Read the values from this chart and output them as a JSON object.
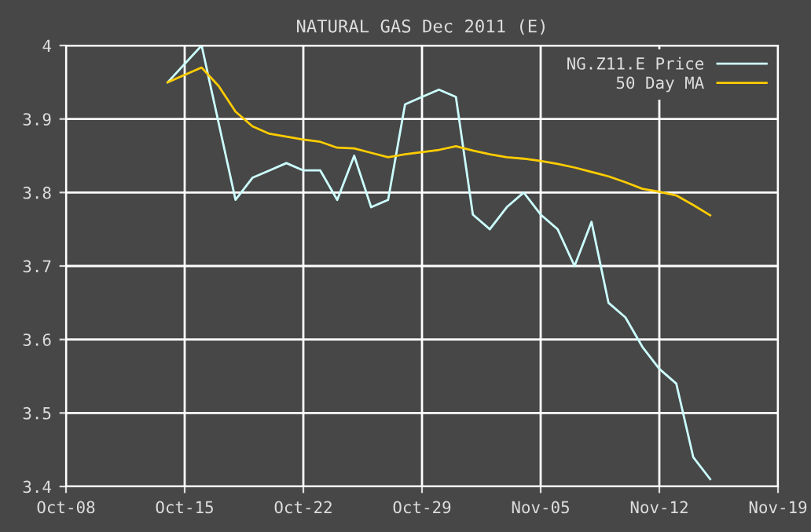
{
  "chart_data": {
    "type": "line",
    "title": "NATURAL GAS Dec 2011 (E)",
    "series": [
      {
        "name": "NG.Z11.E Price",
        "color": "#ccffff",
        "x": [
          "2011-10-14",
          "2011-10-16",
          "2011-10-18",
          "2011-10-19",
          "2011-10-20",
          "2011-10-21",
          "2011-10-22",
          "2011-10-23",
          "2011-10-24",
          "2011-10-25",
          "2011-10-26",
          "2011-10-27",
          "2011-10-28",
          "2011-10-29",
          "2011-10-30",
          "2011-10-31",
          "2011-11-01",
          "2011-11-02",
          "2011-11-03",
          "2011-11-04",
          "2011-11-05",
          "2011-11-06",
          "2011-11-07",
          "2011-11-08",
          "2011-11-09",
          "2011-11-10",
          "2011-11-11",
          "2011-11-12",
          "2011-11-13",
          "2011-11-14",
          "2011-11-15"
        ],
        "values": [
          3.95,
          4.0,
          3.79,
          3.82,
          3.83,
          3.84,
          3.83,
          3.83,
          3.79,
          3.85,
          3.78,
          3.79,
          3.92,
          3.93,
          3.94,
          3.93,
          3.77,
          3.75,
          3.78,
          3.8,
          3.77,
          3.75,
          3.7,
          3.76,
          3.65,
          3.63,
          3.59,
          3.56,
          3.54,
          3.44,
          3.41
        ]
      },
      {
        "name": "50 Day MA",
        "color": "#ffcc00",
        "x": [
          "2011-10-14",
          "2011-10-16",
          "2011-10-17",
          "2011-10-18",
          "2011-10-19",
          "2011-10-20",
          "2011-10-21",
          "2011-10-22",
          "2011-10-23",
          "2011-10-24",
          "2011-10-25",
          "2011-10-26",
          "2011-10-27",
          "2011-10-28",
          "2011-10-29",
          "2011-10-30",
          "2011-10-31",
          "2011-11-01",
          "2011-11-02",
          "2011-11-03",
          "2011-11-04",
          "2011-11-05",
          "2011-11-06",
          "2011-11-07",
          "2011-11-08",
          "2011-11-09",
          "2011-11-10",
          "2011-11-11",
          "2011-11-12",
          "2011-11-13",
          "2011-11-14",
          "2011-11-15"
        ],
        "values": [
          3.95,
          3.97,
          3.945,
          3.91,
          3.89,
          3.88,
          3.876,
          3.872,
          3.869,
          3.861,
          3.86,
          3.854,
          3.848,
          3.852,
          3.855,
          3.858,
          3.863,
          3.857,
          3.852,
          3.848,
          3.846,
          3.843,
          3.839,
          3.834,
          3.828,
          3.822,
          3.814,
          3.805,
          3.801,
          3.796,
          3.783,
          3.769
        ]
      }
    ],
    "xlim": [
      "2011-10-08",
      "2011-11-19"
    ],
    "xticks": [
      {
        "value": "2011-10-08",
        "label": "Oct-08"
      },
      {
        "value": "2011-10-15",
        "label": "Oct-15"
      },
      {
        "value": "2011-10-22",
        "label": "Oct-22"
      },
      {
        "value": "2011-10-29",
        "label": "Oct-29"
      },
      {
        "value": "2011-11-05",
        "label": "Nov-05"
      },
      {
        "value": "2011-11-12",
        "label": "Nov-12"
      },
      {
        "value": "2011-11-19",
        "label": "Nov-19"
      }
    ],
    "ylim": [
      3.4,
      4
    ],
    "yticks": [
      3.4,
      3.5,
      3.6,
      3.7,
      3.8,
      3.9,
      4
    ],
    "grid": true,
    "legend": "top right",
    "marker": "none",
    "line_style": "solid"
  }
}
